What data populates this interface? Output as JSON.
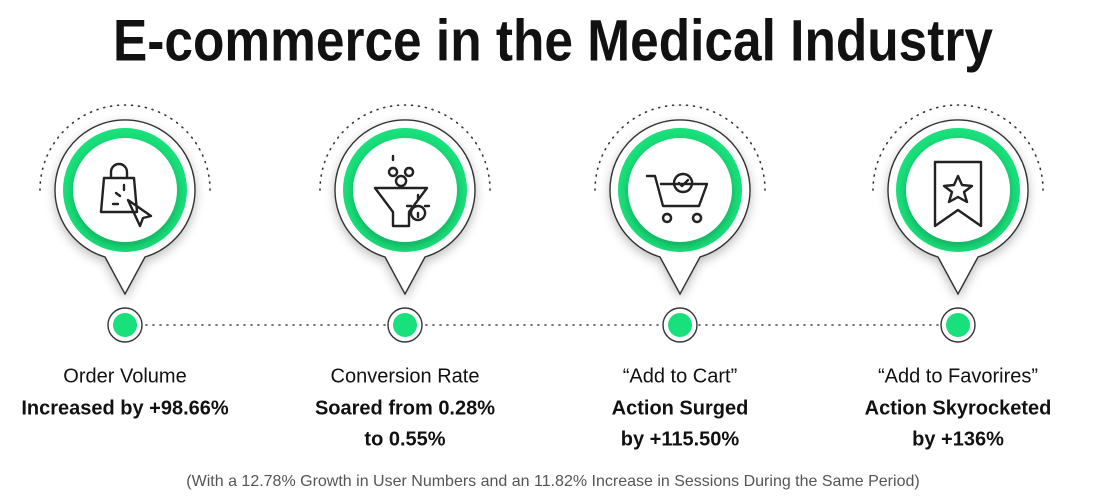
{
  "header": {
    "title": "E-commerce in the Medical Industry"
  },
  "items": [
    {
      "label": "Order Volume",
      "details": [
        "Increased by +98.66%"
      ]
    },
    {
      "label": "Conversion Rate",
      "details": [
        "Soared from 0.28%",
        "to 0.55%"
      ]
    },
    {
      "label": "“Add to Cart”",
      "details": [
        "Action Surged",
        "by +115.50%"
      ]
    },
    {
      "label": "“Add to Favorires”",
      "details": [
        "Action Skyrocketed",
        "by +136%"
      ]
    }
  ],
  "footnote": "(With a 12.78% Growth in User Numbers and an 11.82% Increase in Sessions During the Same Period)"
}
